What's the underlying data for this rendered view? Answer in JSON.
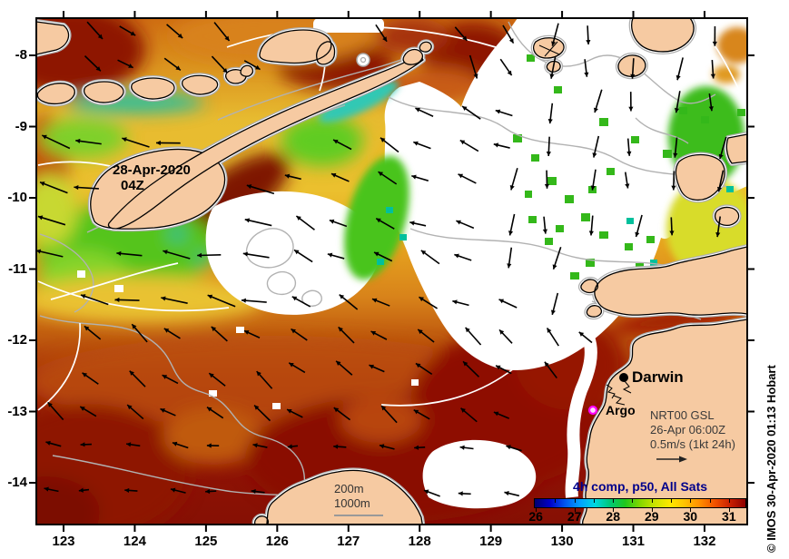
{
  "annotations": {
    "datetime": {
      "line1": "28-Apr-2020",
      "line2": "04Z"
    },
    "city": "Darwin",
    "argo_label": "Argo",
    "vector_legend": {
      "line1": "NRT00 GSL",
      "line2": "26-Apr 06:00Z",
      "line3": "0.5m/s (1kt 24h)"
    },
    "depth_legend": {
      "line1": "200m",
      "line2": "1000m"
    },
    "attribution": "© IMOS 30-Apr-2020 01:13 Hobart"
  },
  "axes": {
    "lat_labels": [
      "-8",
      "-9",
      "-10",
      "-11",
      "-12",
      "-13",
      "-14"
    ],
    "lon_labels": [
      "123",
      "124",
      "125",
      "126",
      "127",
      "128",
      "129",
      "130",
      "131",
      "132"
    ]
  },
  "colorbar": {
    "title": "4h comp, p50, All Sats",
    "tick_labels": [
      "26",
      "27",
      "28",
      "29",
      "30",
      "31"
    ],
    "min": 25.95,
    "max": 31.45,
    "minor_tick_step": 0.5,
    "stops": [
      "#00006e",
      "#0000c8",
      "#0055f0",
      "#00a0ff",
      "#00d8e0",
      "#00c878",
      "#20c81e",
      "#84d800",
      "#cce400",
      "#ffe800",
      "#ffc000",
      "#ff8c00",
      "#f05000",
      "#c81e00",
      "#8c0000"
    ]
  },
  "colors": {
    "land": "#f6caa2",
    "sea_dark_red": "#8e1205",
    "sea_orange": "#e08818",
    "sea_yellow": "#ecc334",
    "sea_green": "#54c41e",
    "argo_marker": "#ff00ff",
    "colorbar_title": "#00008b"
  }
}
